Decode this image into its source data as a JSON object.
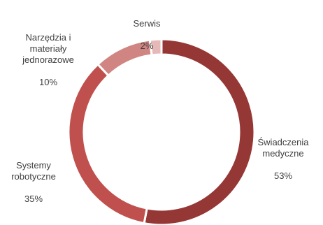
{
  "chart_data": {
    "type": "pie",
    "style": "donut",
    "categories": [
      "Świadczenia medyczne",
      "Systemy robotyczne",
      "Narzędzia i materiały jednorazowe",
      "Serwis"
    ],
    "values": [
      53,
      35,
      10,
      2
    ],
    "labels": [
      {
        "name": "Świadczenia\nmedyczne",
        "value": "53%"
      },
      {
        "name": "Systemy\nrobotyczne",
        "value": "35%"
      },
      {
        "name": "Narzędzia i\nmateriały\njednorazowe",
        "value": "10%"
      },
      {
        "name": "Serwis",
        "value": "2%"
      }
    ],
    "colors": [
      "#953735",
      "#c0504d",
      "#d08582",
      "#e6b9b8"
    ],
    "title": "",
    "legend": "none"
  }
}
